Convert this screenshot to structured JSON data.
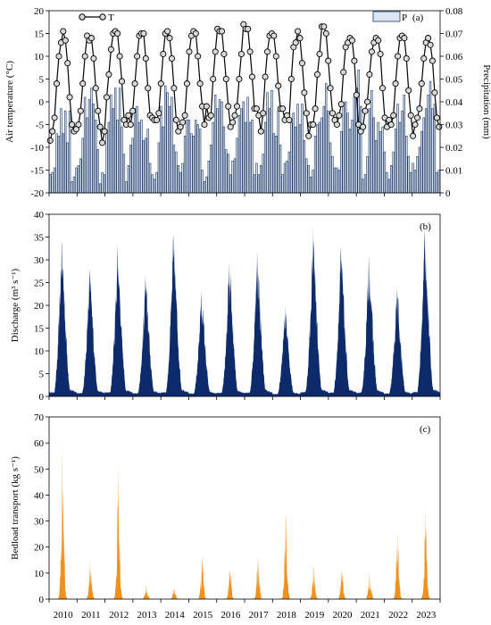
{
  "chart_data": [
    {
      "panel_label": "(a)",
      "type": "line",
      "x_unit": "month",
      "x_start": "2010-01",
      "ylabel": "Air temperature (°C)",
      "ylim": [
        -20,
        20
      ],
      "yticks": [
        "-20",
        "-15",
        "-10",
        "-5",
        "0",
        "5",
        "10",
        "15",
        "20"
      ],
      "y2label": "Precipitation (mm)",
      "y2lim": [
        0,
        0.08
      ],
      "y2ticks": [
        "0",
        "0.01",
        "0.02",
        "0.03",
        "0.04",
        "0.05",
        "0.06",
        "0.07",
        "0.08"
      ],
      "legend_position": "top",
      "series": [
        {
          "name": "T",
          "type": "line",
          "axis": "left",
          "color": "#000000",
          "marker": "circle",
          "values": [
            -8.5,
            -6.5,
            -3.5,
            4,
            10,
            13,
            15.5,
            13.5,
            8.5,
            1,
            -5,
            -6.5,
            -6,
            -5,
            -2,
            4,
            10,
            14.5,
            13.5,
            14,
            9.5,
            3,
            -2,
            -5.5,
            -9,
            -6.5,
            1,
            6,
            11.5,
            15,
            15.5,
            15,
            10,
            4.5,
            -4,
            -5,
            -3,
            -5,
            -2,
            4,
            10,
            14.5,
            15,
            15,
            9.5,
            3,
            -3,
            -3.5,
            -4,
            -4,
            -2.5,
            4,
            10.5,
            15,
            15.5,
            14,
            9.5,
            3,
            -4,
            -6.5,
            -5.5,
            -4.5,
            -3,
            4,
            11,
            14.5,
            15.5,
            15,
            10,
            4,
            -1,
            -5,
            -1,
            -3.5,
            -3,
            5,
            11,
            16,
            15.5,
            15.5,
            10.5,
            5,
            -1,
            -5.5,
            -4.5,
            -3,
            -1,
            5,
            10.5,
            17,
            16,
            16,
            11,
            5.5,
            -1.5,
            -1.5,
            -3,
            -6.5,
            -2.5,
            5.5,
            11,
            14.5,
            15,
            14.5,
            10,
            3.5,
            -1.5,
            -1.5,
            -4,
            -3,
            -4,
            5,
            12,
            13,
            15.5,
            14,
            8.5,
            2,
            -2.5,
            -7.5,
            -5,
            -5,
            -1.5,
            6,
            10.5,
            16.5,
            16.5,
            15,
            9,
            3,
            -2.5,
            -4,
            -5,
            -3,
            -0.5,
            6.5,
            12,
            13,
            14,
            13.5,
            9,
            1.5,
            -5,
            -6.5,
            -5.5,
            -2,
            0,
            6,
            11,
            13,
            14,
            13.5,
            10.5,
            3,
            -3.5,
            -5.5,
            -4,
            -5,
            -3,
            4,
            10,
            14,
            14.5,
            14,
            9.5,
            2.5,
            -3,
            -7.5,
            -5,
            -3.5,
            -1.5,
            4,
            9.5,
            13,
            14,
            12.5,
            9,
            2,
            -3.5,
            -5.5
          ]
        },
        {
          "name": "P",
          "type": "bar",
          "axis": "right",
          "color": "#dce6f2",
          "values": [
            0.008,
            0.009,
            0.011,
            0.026,
            0.025,
            0.037,
            0.026,
            0.036,
            0.022,
            0.036,
            0.005,
            0.007,
            0.011,
            0.012,
            0.015,
            0.024,
            0.042,
            0.033,
            0.041,
            0.046,
            0.039,
            0.032,
            0.019,
            0.004,
            0.009,
            0.008,
            0.026,
            0.031,
            0.043,
            0.037,
            0.046,
            0.032,
            0.046,
            0.029,
            0.017,
            0.005,
            0.012,
            0.021,
            0.024,
            0.037,
            0.038,
            0.031,
            0.032,
            0.023,
            0.024,
            0.028,
            0.013,
            0.008,
            0.006,
            0.009,
            0.022,
            0.038,
            0.029,
            0.047,
            0.044,
            0.038,
            0.042,
            0.021,
            0.018,
            0.012,
            0.009,
            0.013,
            0.025,
            0.032,
            0.032,
            0.026,
            0.025,
            0.032,
            0.03,
            0.028,
            0.01,
            0.005,
            0.007,
            0.014,
            0.021,
            0.031,
            0.043,
            0.037,
            0.041,
            0.04,
            0.029,
            0.019,
            0.017,
            0.008,
            0.014,
            0.015,
            0.024,
            0.034,
            0.037,
            0.04,
            0.031,
            0.042,
            0.031,
            0.032,
            0.008,
            0.013,
            0.008,
            0.012,
            0.017,
            0.031,
            0.044,
            0.037,
            0.045,
            0.026,
            0.025,
            0.036,
            0.021,
            0.008,
            0.013,
            0.014,
            0.018,
            0.031,
            0.035,
            0.029,
            0.039,
            0.03,
            0.039,
            0.023,
            0.015,
            0.012,
            0.007,
            0.01,
            0.025,
            0.03,
            0.031,
            0.033,
            0.038,
            0.048,
            0.036,
            0.022,
            0.016,
            0.011,
            0.011,
            0.01,
            0.027,
            0.038,
            0.04,
            0.035,
            0.028,
            0.032,
            0.042,
            0.046,
            0.054,
            0.038,
            0.006,
            0.008,
            0.016,
            0.037,
            0.045,
            0.033,
            0.023,
            0.031,
            0.027,
            0.029,
            0.018,
            0.009,
            0.006,
            0.012,
            0.018,
            0.028,
            0.039,
            0.031,
            0.036,
            0.043,
            0.025,
            0.016,
            0.009,
            0.013,
            0.01,
            0.016,
            0.02,
            0.027,
            0.033,
            0.037,
            0.043,
            0.049,
            0.037,
            0.039,
            0.009,
            0.01
          ]
        }
      ]
    },
    {
      "panel_label": "(b)",
      "type": "area",
      "x_unit": "year",
      "ylabel": "Discharge (m³ s⁻¹)",
      "ylim": [
        0,
        40
      ],
      "yticks": [
        "0",
        "5",
        "10",
        "15",
        "20",
        "25",
        "30",
        "35",
        "40"
      ],
      "color": "#0d2a6b",
      "annual_peaks": [
        {
          "year": "2010",
          "peak": 34
        },
        {
          "year": "2011",
          "peak": 28
        },
        {
          "year": "2012",
          "peak": 33.5
        },
        {
          "year": "2013",
          "peak": 26.5
        },
        {
          "year": "2014",
          "peak": 35.5
        },
        {
          "year": "2015",
          "peak": 23.5
        },
        {
          "year": "2016",
          "peak": 29.5
        },
        {
          "year": "2017",
          "peak": 32
        },
        {
          "year": "2018",
          "peak": 20
        },
        {
          "year": "2019",
          "peak": 37
        },
        {
          "year": "2020",
          "peak": 33
        },
        {
          "year": "2021",
          "peak": 31
        },
        {
          "year": "2022",
          "peak": 24
        },
        {
          "year": "2023",
          "peak": 37
        }
      ]
    },
    {
      "panel_label": "(c)",
      "type": "area",
      "x_unit": "year",
      "ylabel": "Bedload transport (kg s⁻¹)",
      "ylim": [
        0,
        70
      ],
      "yticks": [
        "0",
        "10",
        "20",
        "30",
        "40",
        "50",
        "60",
        "70"
      ],
      "color": "#f0901f",
      "annual_peaks": [
        {
          "year": "2010",
          "peak": 60
        },
        {
          "year": "2011",
          "peak": 16
        },
        {
          "year": "2012",
          "peak": 51
        },
        {
          "year": "2013",
          "peak": 6
        },
        {
          "year": "2014",
          "peak": 4
        },
        {
          "year": "2015",
          "peak": 17
        },
        {
          "year": "2016",
          "peak": 11
        },
        {
          "year": "2017",
          "peak": 17
        },
        {
          "year": "2018",
          "peak": 33
        },
        {
          "year": "2019",
          "peak": 13
        },
        {
          "year": "2020",
          "peak": 12
        },
        {
          "year": "2021",
          "peak": 11
        },
        {
          "year": "2022",
          "peak": 27
        },
        {
          "year": "2023",
          "peak": 35
        }
      ]
    }
  ],
  "x_axis": {
    "years": [
      "2010",
      "2011",
      "2012",
      "2013",
      "2014",
      "2015",
      "2016",
      "2017",
      "2018",
      "2019",
      "2020",
      "2021",
      "2022",
      "2023"
    ]
  }
}
